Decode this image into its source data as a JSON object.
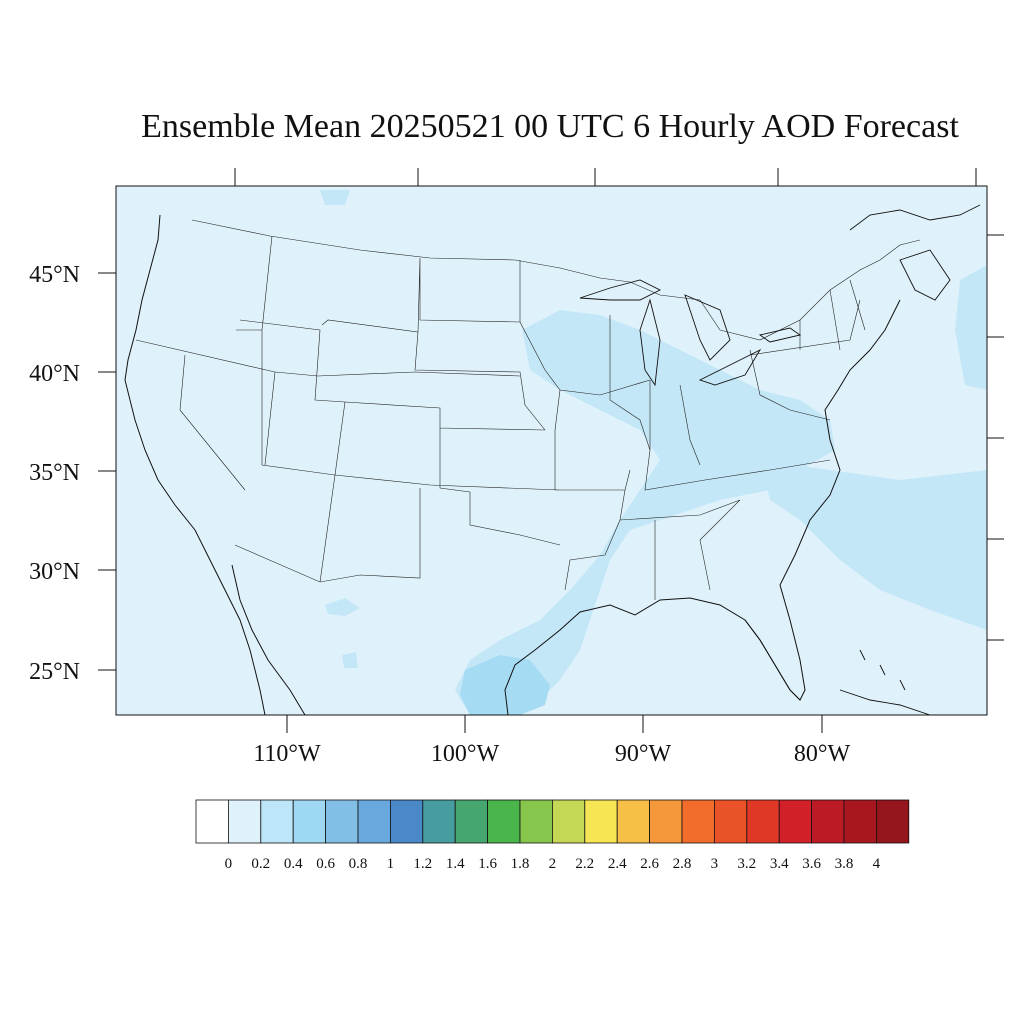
{
  "title": "Ensemble Mean 20250521 00 UTC 6 Hourly AOD Forecast",
  "map": {
    "lat_labels": [
      "45°N",
      "40°N",
      "35°N",
      "30°N",
      "25°N"
    ],
    "lon_labels": [
      "110°W",
      "100°W",
      "90°W",
      "80°W"
    ]
  },
  "colorbar": {
    "colors": [
      "#ffffff",
      "#dff2fb",
      "#bde6f8",
      "#9ed8f3",
      "#82bfe6",
      "#68a8dc",
      "#4a88c8",
      "#469c9e",
      "#45a670",
      "#49b54a",
      "#86c64c",
      "#c6d655",
      "#f6e555",
      "#f6c046",
      "#f4983b",
      "#f26d2c",
      "#ea5228",
      "#df3826",
      "#d12028",
      "#bc1a24",
      "#a8171f",
      "#94151b"
    ],
    "labels": [
      "0",
      "0.2",
      "0.4",
      "0.6",
      "0.8",
      "1",
      "1.2",
      "1.4",
      "1.6",
      "1.8",
      "2",
      "2.2",
      "2.4",
      "2.6",
      "2.8",
      "3",
      "3.2",
      "3.4",
      "3.6",
      "3.8",
      "4"
    ]
  }
}
